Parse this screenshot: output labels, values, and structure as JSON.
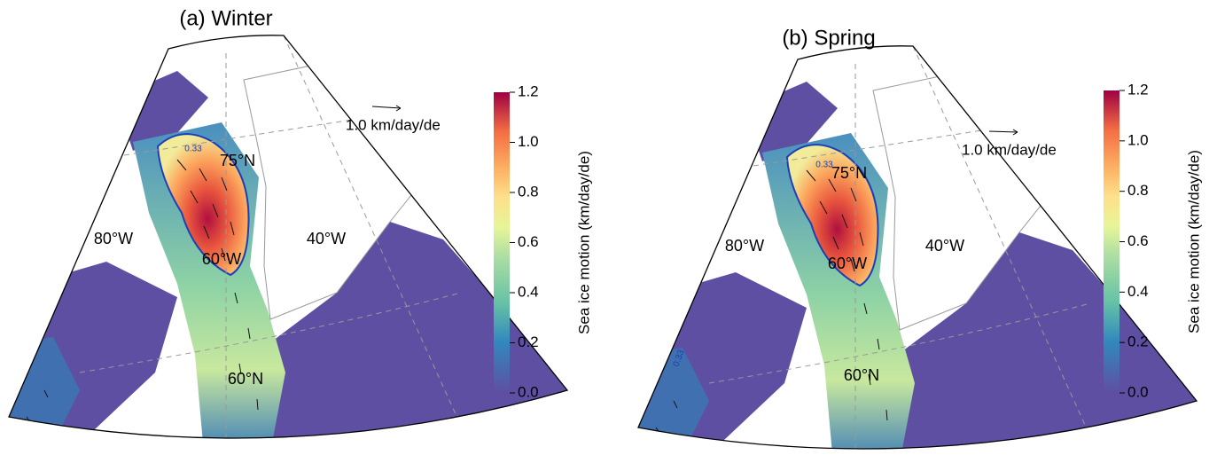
{
  "panels": [
    {
      "title": "(a) Winter",
      "labels": [
        "75°N",
        "80°W",
        "40°W",
        "60°W",
        "60°N"
      ],
      "contour_labels": [
        "0.33"
      ],
      "reference_arrow": "1.0 km/day/de",
      "colorbar": {
        "label": "Sea ice motion (km/day/de)",
        "lim": [
          0,
          1.2
        ],
        "ticks": [
          {
            "value": 0,
            "label": "0.0"
          },
          0.2,
          0.4,
          0.6,
          0.8,
          {
            "value": 1,
            "label": "1.0"
          },
          1.2
        ]
      }
    },
    {
      "title": "(b) Spring",
      "labels": [
        "75°N",
        "80°W",
        "40°W",
        "60°W",
        "60°N"
      ],
      "contour_labels": [
        "0.33",
        "0.33"
      ],
      "reference_arrow": "1.0 km/day/de",
      "colorbar": {
        "label": "Sea ice motion (km/day/de)",
        "lim": [
          0,
          1.2
        ],
        "ticks": [
          {
            "value": 0,
            "label": "0.0"
          },
          0.2,
          0.4,
          0.6,
          0.8,
          {
            "value": 1,
            "label": "1.0"
          },
          1.2
        ]
      }
    }
  ]
}
